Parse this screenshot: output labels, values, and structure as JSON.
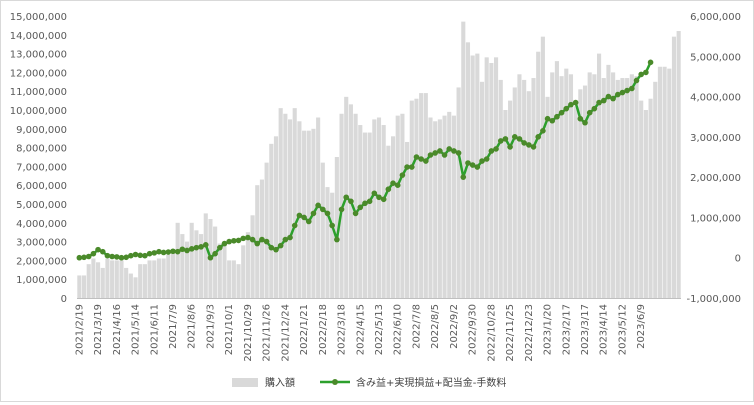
{
  "chart_data": {
    "type": "bar+line",
    "title": "",
    "xlabel": "",
    "ylabel": "",
    "y_left": {
      "range": [
        0,
        15000000
      ],
      "ticks": [
        "0",
        "1,000,000",
        "2,000,000",
        "3,000,000",
        "4,000,000",
        "5,000,000",
        "6,000,000",
        "7,000,000",
        "8,000,000",
        "9,000,000",
        "10,000,000",
        "11,000,000",
        "12,000,000",
        "13,000,000",
        "14,000,000",
        "15,000,000"
      ]
    },
    "y_right": {
      "range": [
        -1000000,
        6000000
      ],
      "ticks": [
        "-1,000,000",
        "0",
        "1,000,000",
        "2,000,000",
        "3,000,000",
        "4,000,000",
        "5,000,000",
        "6,000,000"
      ]
    },
    "x_tick_labels": [
      "2021/2/19",
      "2021/3/19",
      "2021/4/16",
      "2021/5/14",
      "2021/6/11",
      "2021/7/9",
      "2021/8/6",
      "2021/9/3",
      "2021/10/1",
      "2021/10/29",
      "2021/11/26",
      "2021/12/24",
      "2022/1/21",
      "2022/2/18",
      "2022/3/18",
      "2022/4/15",
      "2022/5/13",
      "2022/6/10",
      "2022/7/8",
      "2022/8/5",
      "2022/9/2",
      "2022/9/30",
      "2022/10/28",
      "2022/11/25",
      "2022/12/23",
      "2023/1/20",
      "2023/2/17",
      "2023/3/17",
      "2023/4/14",
      "2023/5/12",
      "2023/6/9"
    ],
    "grid": false,
    "legend_position": "bottom",
    "series": [
      {
        "name": "購入額",
        "type": "bar",
        "axis": "left",
        "color": "#d9d9d9",
        "values": [
          1200000,
          1200000,
          1800000,
          2100000,
          1900000,
          1600000,
          2100000,
          2000000,
          2000000,
          2000000,
          1600000,
          1300000,
          1100000,
          1800000,
          1800000,
          2000000,
          2000000,
          2100000,
          2100000,
          2300000,
          2500000,
          4000000,
          3400000,
          3000000,
          4000000,
          3600000,
          3400000,
          4500000,
          4200000,
          3800000,
          2900000,
          3000000,
          2000000,
          2000000,
          1800000,
          2800000,
          3500000,
          4400000,
          6000000,
          6300000,
          7200000,
          8200000,
          8600000,
          10100000,
          9800000,
          9500000,
          10100000,
          9400000,
          8900000,
          8900000,
          9000000,
          9600000,
          7200000,
          5900000,
          5600000,
          7500000,
          9800000,
          10700000,
          10300000,
          9800000,
          9200000,
          8800000,
          8800000,
          9500000,
          9600000,
          9200000,
          8100000,
          8600000,
          9700000,
          9800000,
          8300000,
          10500000,
          10600000,
          10900000,
          10900000,
          9600000,
          9400000,
          9500000,
          9700000,
          9900000,
          9700000,
          11200000,
          14700000,
          13600000,
          12900000,
          13000000,
          11500000,
          12800000,
          12500000,
          12800000,
          11600000,
          10000000,
          10500000,
          11200000,
          11900000,
          11600000,
          11000000,
          11700000,
          13100000,
          13900000,
          10700000,
          12000000,
          12600000,
          11800000,
          12200000,
          11900000,
          10200000,
          11100000,
          11300000,
          12000000,
          11900000,
          13000000,
          11700000,
          12400000,
          12000000,
          11600000,
          11700000,
          11700000,
          11900000,
          11800000,
          10500000,
          10000000,
          10600000,
          11500000,
          12300000,
          12300000,
          12200000,
          13900000,
          14200000
        ]
      },
      {
        "name": "含み益+実現損益+配当金-手数料",
        "type": "line",
        "axis": "right",
        "color": "#2ca02c",
        "marker_color": "#4a8a2a",
        "values": [
          0,
          10000,
          30000,
          100000,
          200000,
          150000,
          50000,
          30000,
          20000,
          0,
          10000,
          50000,
          80000,
          60000,
          50000,
          100000,
          120000,
          150000,
          130000,
          140000,
          160000,
          150000,
          210000,
          180000,
          220000,
          250000,
          270000,
          320000,
          0,
          100000,
          250000,
          350000,
          400000,
          420000,
          430000,
          480000,
          500000,
          450000,
          350000,
          450000,
          400000,
          250000,
          200000,
          300000,
          450000,
          500000,
          800000,
          1050000,
          1000000,
          900000,
          1100000,
          1300000,
          1200000,
          1100000,
          800000,
          450000,
          1200000,
          1500000,
          1400000,
          1100000,
          1250000,
          1350000,
          1400000,
          1600000,
          1500000,
          1450000,
          1700000,
          1850000,
          1800000,
          2050000,
          2250000,
          2250000,
          2500000,
          2450000,
          2400000,
          2550000,
          2600000,
          2650000,
          2550000,
          2700000,
          2650000,
          2600000,
          2000000,
          2350000,
          2300000,
          2250000,
          2400000,
          2450000,
          2650000,
          2700000,
          2900000,
          2950000,
          2750000,
          3000000,
          2950000,
          2850000,
          2800000,
          2750000,
          3000000,
          3150000,
          3450000,
          3400000,
          3500000,
          3600000,
          3700000,
          3800000,
          3850000,
          3450000,
          3350000,
          3600000,
          3700000,
          3850000,
          3900000,
          4000000,
          3950000,
          4050000,
          4100000,
          4150000,
          4200000,
          4400000,
          4550000,
          4600000,
          4850000
        ]
      }
    ]
  }
}
